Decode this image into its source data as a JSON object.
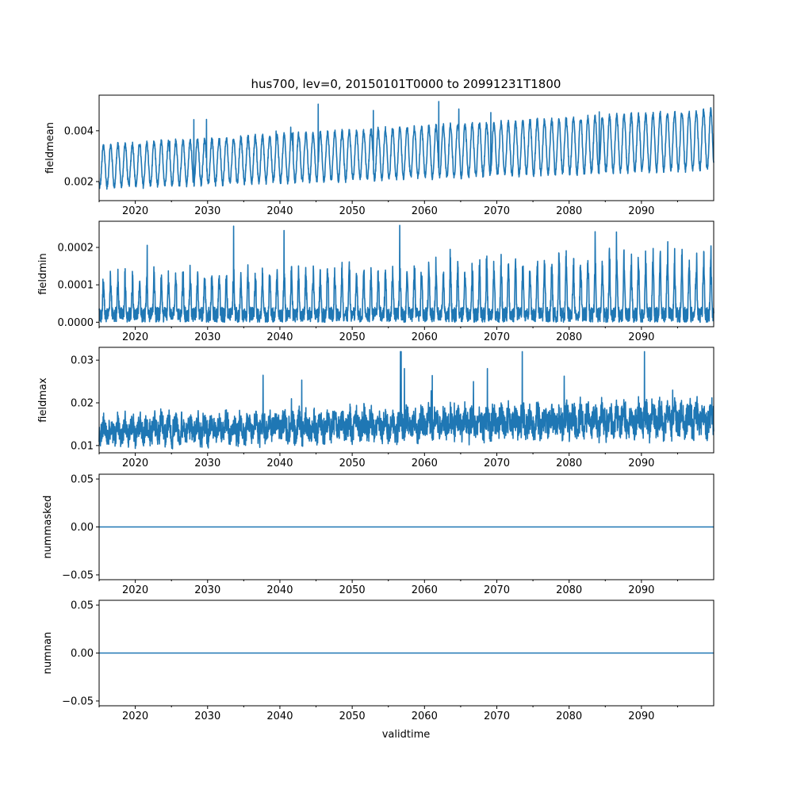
{
  "chart_data": {
    "type": "line",
    "title": "hus700, lev=0, 20150101T0000 to 20991231T1800",
    "xlabel": "validtime",
    "x_range": [
      "2015-01-01",
      "2099-12-31"
    ],
    "x_ticks": [
      "2020",
      "2030",
      "2040",
      "2050",
      "2060",
      "2070",
      "2080",
      "2090"
    ],
    "line_color": "#1f77b4",
    "panels": [
      {
        "ylabel": "fieldmean",
        "ylim": [
          0.00125,
          0.0054
        ],
        "yticks": [
          0.002,
          0.004
        ],
        "ytick_labels": [
          "0.002",
          "0.004"
        ],
        "series": {
          "kind": "seasonal",
          "low_start": 0.0018,
          "low_end": 0.0025,
          "high_start": 0.0034,
          "high_end": 0.0048,
          "noise": 0.00012,
          "spike_max": 0.0052
        }
      },
      {
        "ylabel": "fieldmin",
        "ylim": [
          -1.2e-05,
          0.00027
        ],
        "yticks": [
          0.0,
          0.0001,
          0.0002
        ],
        "ytick_labels": [
          "0.0000",
          "0.0001",
          "0.0002"
        ],
        "series": {
          "kind": "seasonal-spiky",
          "low_start": 0.0,
          "low_end": 0.0,
          "high_start": 0.00011,
          "high_end": 0.00018,
          "noise": 2e-05,
          "spike_max": 0.00026
        }
      },
      {
        "ylabel": "fieldmax",
        "ylim": [
          0.0083,
          0.033
        ],
        "yticks": [
          0.01,
          0.02,
          0.03
        ],
        "ytick_labels": [
          "0.01",
          "0.02",
          "0.03"
        ],
        "series": {
          "kind": "noisy",
          "low_start": 0.0095,
          "low_end": 0.0115,
          "high_start": 0.017,
          "high_end": 0.021,
          "noise": 0.002,
          "spike_max": 0.032
        }
      },
      {
        "ylabel": "nummasked",
        "ylim": [
          -0.055,
          0.055
        ],
        "yticks": [
          -0.05,
          0.0,
          0.05
        ],
        "ytick_labels": [
          "−0.05",
          "0.00",
          "0.05"
        ],
        "series": {
          "kind": "constant",
          "value": 0.0
        }
      },
      {
        "ylabel": "numnan",
        "ylim": [
          -0.055,
          0.055
        ],
        "yticks": [
          -0.05,
          0.0,
          0.05
        ],
        "ytick_labels": [
          "−0.05",
          "0.00",
          "0.05"
        ],
        "series": {
          "kind": "constant",
          "value": 0.0
        }
      }
    ]
  }
}
